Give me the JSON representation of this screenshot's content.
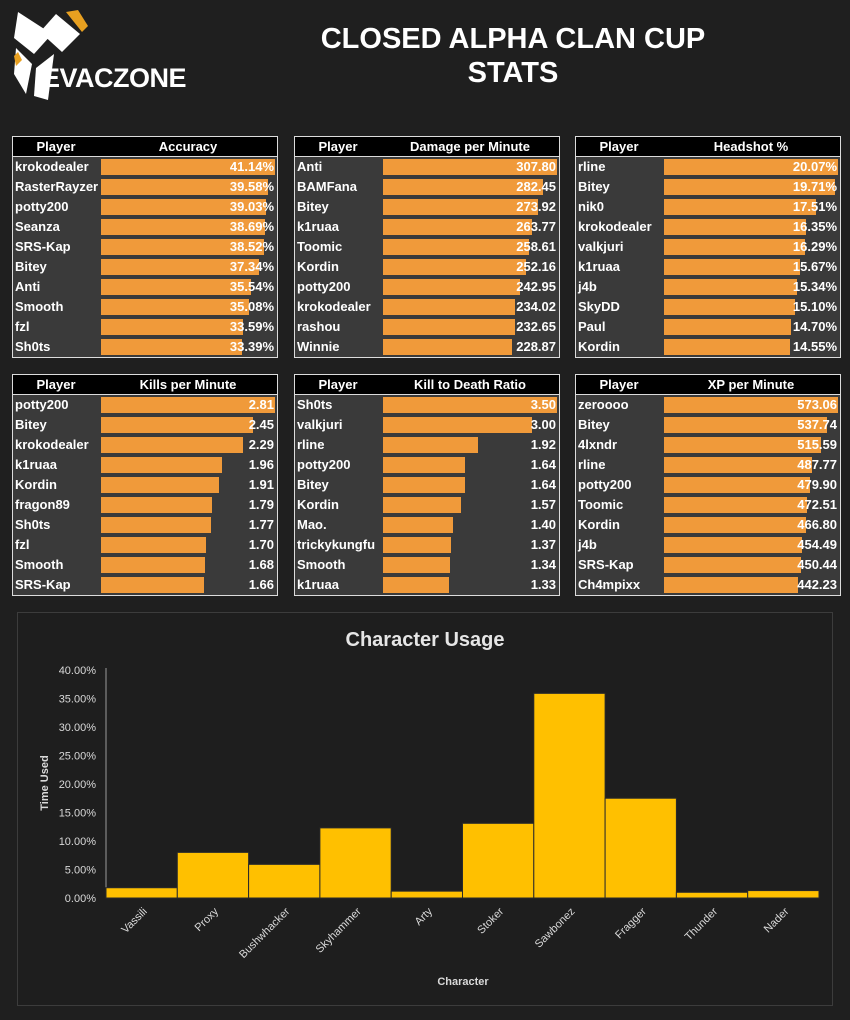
{
  "header": {
    "brand": "EVACZONE",
    "title_line1": "CLOSED ALPHA CLAN CUP",
    "title_line2": "STATS"
  },
  "tables": [
    {
      "player_label": "Player",
      "metric": "Accuracy",
      "max": 41.14,
      "rows": [
        {
          "name": "krokodealer",
          "value": 41.14,
          "text": "41.14%"
        },
        {
          "name": "RasterRayzer",
          "value": 39.58,
          "text": "39.58%"
        },
        {
          "name": "potty200",
          "value": 39.03,
          "text": "39.03%"
        },
        {
          "name": "Seanza",
          "value": 38.69,
          "text": "38.69%"
        },
        {
          "name": "SRS-Kap",
          "value": 38.52,
          "text": "38.52%"
        },
        {
          "name": "Bitey",
          "value": 37.34,
          "text": "37.34%"
        },
        {
          "name": "Anti",
          "value": 35.54,
          "text": "35.54%"
        },
        {
          "name": "Smooth",
          "value": 35.08,
          "text": "35.08%"
        },
        {
          "name": "fzl",
          "value": 33.59,
          "text": "33.59%"
        },
        {
          "name": "Sh0ts",
          "value": 33.39,
          "text": "33.39%"
        }
      ]
    },
    {
      "player_label": "Player",
      "metric": "Damage per Minute",
      "max": 307.8,
      "rows": [
        {
          "name": "Anti",
          "value": 307.8,
          "text": "307.80"
        },
        {
          "name": "BAMFana",
          "value": 282.45,
          "text": "282.45"
        },
        {
          "name": "Bitey",
          "value": 273.92,
          "text": "273.92"
        },
        {
          "name": "k1ruaa",
          "value": 263.77,
          "text": "263.77"
        },
        {
          "name": "Toomic",
          "value": 258.61,
          "text": "258.61"
        },
        {
          "name": "Kordin",
          "value": 252.16,
          "text": "252.16"
        },
        {
          "name": "potty200",
          "value": 242.95,
          "text": "242.95"
        },
        {
          "name": "krokodealer",
          "value": 234.02,
          "text": "234.02"
        },
        {
          "name": "rashou",
          "value": 232.65,
          "text": "232.65"
        },
        {
          "name": "Winnie",
          "value": 228.87,
          "text": "228.87"
        }
      ]
    },
    {
      "player_label": "Player",
      "metric": "Headshot %",
      "max": 20.07,
      "rows": [
        {
          "name": "rline",
          "value": 20.07,
          "text": "20.07%"
        },
        {
          "name": "Bitey",
          "value": 19.71,
          "text": "19.71%"
        },
        {
          "name": "nik0",
          "value": 17.51,
          "text": "17.51%"
        },
        {
          "name": "krokodealer",
          "value": 16.35,
          "text": "16.35%"
        },
        {
          "name": "valkjuri",
          "value": 16.29,
          "text": "16.29%"
        },
        {
          "name": "k1ruaa",
          "value": 15.67,
          "text": "15.67%"
        },
        {
          "name": "j4b",
          "value": 15.34,
          "text": "15.34%"
        },
        {
          "name": "SkyDD",
          "value": 15.1,
          "text": "15.10%"
        },
        {
          "name": "Paul",
          "value": 14.7,
          "text": "14.70%"
        },
        {
          "name": "Kordin",
          "value": 14.55,
          "text": "14.55%"
        }
      ]
    },
    {
      "player_label": "Player",
      "metric": "Kills per Minute",
      "max": 2.81,
      "rows": [
        {
          "name": "potty200",
          "value": 2.81,
          "text": "2.81"
        },
        {
          "name": "Bitey",
          "value": 2.45,
          "text": "2.45"
        },
        {
          "name": "krokodealer",
          "value": 2.29,
          "text": "2.29"
        },
        {
          "name": "k1ruaa",
          "value": 1.96,
          "text": "1.96"
        },
        {
          "name": "Kordin",
          "value": 1.91,
          "text": "1.91"
        },
        {
          "name": "fragon89",
          "value": 1.79,
          "text": "1.79"
        },
        {
          "name": "Sh0ts",
          "value": 1.77,
          "text": "1.77"
        },
        {
          "name": "fzl",
          "value": 1.7,
          "text": "1.70"
        },
        {
          "name": "Smooth",
          "value": 1.68,
          "text": "1.68"
        },
        {
          "name": "SRS-Kap",
          "value": 1.66,
          "text": "1.66"
        }
      ]
    },
    {
      "player_label": "Player",
      "metric": "Kill to Death Ratio",
      "max": 3.5,
      "rows": [
        {
          "name": "Sh0ts",
          "value": 3.5,
          "text": "3.50"
        },
        {
          "name": "valkjuri",
          "value": 3.0,
          "text": "3.00"
        },
        {
          "name": "rline",
          "value": 1.92,
          "text": "1.92"
        },
        {
          "name": "potty200",
          "value": 1.64,
          "text": "1.64"
        },
        {
          "name": "Bitey",
          "value": 1.64,
          "text": "1.64"
        },
        {
          "name": "Kordin",
          "value": 1.57,
          "text": "1.57"
        },
        {
          "name": "Mao.",
          "value": 1.4,
          "text": "1.40"
        },
        {
          "name": "trickykungfu",
          "value": 1.37,
          "text": "1.37"
        },
        {
          "name": "Smooth",
          "value": 1.34,
          "text": "1.34"
        },
        {
          "name": "k1ruaa",
          "value": 1.33,
          "text": "1.33"
        }
      ]
    },
    {
      "player_label": "Player",
      "metric": "XP per Minute",
      "max": 573.06,
      "rows": [
        {
          "name": "zeroooo",
          "value": 573.06,
          "text": "573.06"
        },
        {
          "name": "Bitey",
          "value": 537.74,
          "text": "537.74"
        },
        {
          "name": "4lxndr",
          "value": 515.59,
          "text": "515.59"
        },
        {
          "name": "rline",
          "value": 487.77,
          "text": "487.77"
        },
        {
          "name": "potty200",
          "value": 479.9,
          "text": "479.90"
        },
        {
          "name": "Toomic",
          "value": 472.51,
          "text": "472.51"
        },
        {
          "name": "Kordin",
          "value": 466.8,
          "text": "466.80"
        },
        {
          "name": "j4b",
          "value": 454.49,
          "text": "454.49"
        },
        {
          "name": "SRS-Kap",
          "value": 450.44,
          "text": "450.44"
        },
        {
          "name": "Ch4mpixx",
          "value": 442.23,
          "text": "442.23"
        }
      ]
    }
  ],
  "chart_data": {
    "type": "bar",
    "title": "Character Usage",
    "xlabel": "Character",
    "ylabel": "Time Used",
    "ylim": [
      0,
      40
    ],
    "yticks": [
      "0.00%",
      "5.00%",
      "10.00%",
      "15.00%",
      "20.00%",
      "25.00%",
      "30.00%",
      "35.00%",
      "40.00%"
    ],
    "categories": [
      "Vassili",
      "Proxy",
      "Bushwhacker",
      "Skyhammer",
      "Arty",
      "Stoker",
      "Sawbonez",
      "Fragger",
      "Thunder",
      "Nader"
    ],
    "values": [
      1.8,
      8.0,
      5.9,
      12.3,
      1.2,
      13.1,
      35.9,
      17.5,
      1.0,
      1.3
    ],
    "bar_color": "#ffc000"
  }
}
